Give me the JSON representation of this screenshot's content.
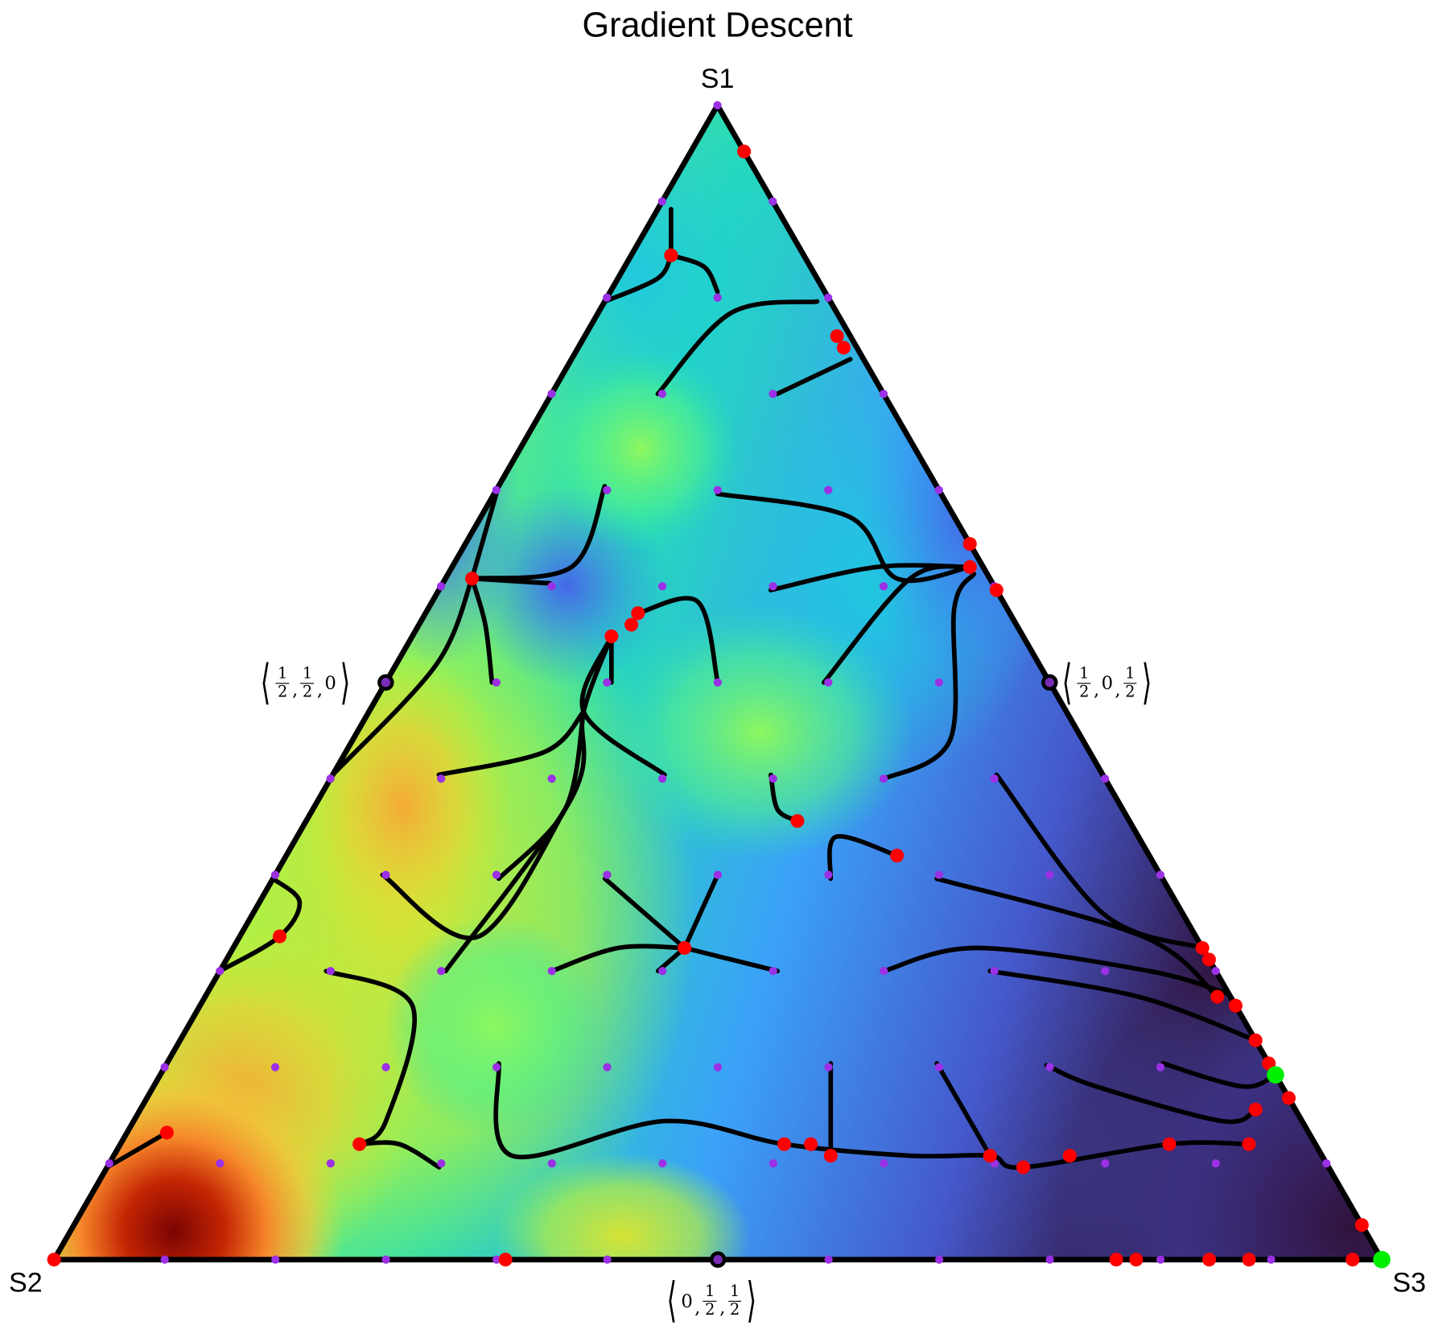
{
  "chart_data": {
    "type": "ternary",
    "title": "Gradient Descent",
    "vertex_labels": {
      "top": "S1",
      "left": "S2",
      "right": "S3"
    },
    "midpoint_labels": [
      {
        "edge": "S1-S2",
        "parts": [
          "1/2",
          "1/2",
          "0"
        ],
        "coords": [
          0.5,
          0.5,
          0
        ]
      },
      {
        "edge": "S1-S3",
        "parts": [
          "1/2",
          "0",
          "1/2"
        ],
        "coords": [
          0.5,
          0,
          0.5
        ]
      },
      {
        "edge": "S2-S3",
        "parts": [
          "0",
          "1/2",
          "1/2"
        ],
        "coords": [
          0,
          0.5,
          0.5
        ]
      }
    ],
    "coordinate_order": [
      "S1",
      "S2",
      "S3"
    ],
    "start_grid_divisions": 12,
    "background": "heatmap (turbo colormap), high (dark red) near S2, low (dark purple) near S3",
    "colors": {
      "start": "#9b30e6",
      "end": "#ff0000",
      "optimum": "#00ee00",
      "path": "#000000",
      "border": "#000000"
    },
    "endpoints": [
      [
        0.96,
        0,
        0.04
      ],
      [
        0.87,
        0.1,
        0.03
      ],
      [
        0.8,
        0.01,
        0.19
      ],
      [
        0.79,
        0.01,
        0.2
      ],
      [
        0.62,
        0,
        0.38
      ],
      [
        0.6,
        0.01,
        0.39
      ],
      [
        0.58,
        0,
        0.42
      ],
      [
        0.59,
        0.39,
        0.02
      ],
      [
        0.54,
        0.31,
        0.15
      ],
      [
        0.55,
        0.29,
        0.16
      ],
      [
        0.56,
        0.28,
        0.16
      ],
      [
        0.38,
        0.25,
        0.37
      ],
      [
        0.35,
        0.19,
        0.46
      ],
      [
        0.28,
        0.69,
        0.03
      ],
      [
        0.27,
        0.39,
        0.34
      ],
      [
        0.1,
        0.72,
        0.18
      ],
      [
        0.11,
        0.86,
        0.03
      ],
      [
        0,
        1,
        0
      ],
      [
        0,
        0.66,
        0.34
      ],
      [
        0.1,
        0.4,
        0.5
      ],
      [
        0.1,
        0.38,
        0.52
      ],
      [
        0.09,
        0.37,
        0.54
      ],
      [
        0.09,
        0.25,
        0.66
      ],
      [
        0.08,
        0.23,
        0.69
      ],
      [
        0.09,
        0.19,
        0.72
      ],
      [
        0.1,
        0.11,
        0.79
      ],
      [
        0.1,
        0.05,
        0.85
      ],
      [
        0.13,
        0.03,
        0.84
      ],
      [
        0.14,
        0,
        0.86
      ],
      [
        0.27,
        0,
        0.73
      ],
      [
        0.26,
        0,
        0.74
      ],
      [
        0.23,
        0.01,
        0.77
      ],
      [
        0.22,
        0,
        0.78
      ],
      [
        0.19,
        0,
        0.81
      ],
      [
        0.17,
        0,
        0.83
      ],
      [
        0.03,
        0,
        0.97
      ],
      [
        0,
        0.2,
        0.8
      ],
      [
        0,
        0.185,
        0.815
      ],
      [
        0,
        0.13,
        0.87
      ],
      [
        0,
        0.1,
        0.9
      ],
      [
        0,
        0.022,
        0.978
      ]
    ],
    "optima": [
      [
        0.16,
        0,
        0.84
      ],
      [
        0,
        0,
        1
      ]
    ],
    "paths": [
      [
        [
          0.83,
          0.08,
          0.08
        ],
        [
          0.86,
          0.08,
          0.06
        ],
        [
          0.87,
          0.1,
          0.03
        ]
      ],
      [
        [
          0.83,
          0.17,
          0.0
        ],
        [
          0.85,
          0.12,
          0.03
        ],
        [
          0.87,
          0.1,
          0.03
        ]
      ],
      [
        [
          0.91,
          0.08,
          0.01
        ],
        [
          0.89,
          0.09,
          0.02
        ],
        [
          0.87,
          0.1,
          0.03
        ]
      ],
      [
        [
          0.75,
          0.17,
          0.08
        ],
        [
          0.82,
          0.08,
          0.1
        ],
        [
          0.83,
          0.01,
          0.16
        ]
      ],
      [
        [
          0.75,
          0.08,
          0.17
        ],
        [
          0.78,
          0.01,
          0.21
        ]
      ],
      [
        [
          0.67,
          0.17,
          0.17
        ],
        [
          0.65,
          0.08,
          0.28
        ],
        [
          0.59,
          0.07,
          0.34
        ],
        [
          0.6,
          0.01,
          0.39
        ]
      ],
      [
        [
          0.58,
          0.17,
          0.25
        ],
        [
          0.6,
          0.08,
          0.32
        ],
        [
          0.6,
          0.01,
          0.39
        ]
      ],
      [
        [
          0.5,
          0.17,
          0.33
        ],
        [
          0.59,
          0.06,
          0.35
        ],
        [
          0.6,
          0.01,
          0.39
        ]
      ],
      [
        [
          0.42,
          0.17,
          0.42
        ],
        [
          0.45,
          0.1,
          0.45
        ],
        [
          0.57,
          0.04,
          0.4
        ],
        [
          0.6,
          0.01,
          0.4
        ]
      ],
      [
        [
          0.5,
          0.33,
          0.17
        ],
        [
          0.54,
          0.31,
          0.15
        ]
      ],
      [
        [
          0.5,
          0.25,
          0.25
        ],
        [
          0.57,
          0.23,
          0.2
        ],
        [
          0.56,
          0.28,
          0.16
        ]
      ],
      [
        [
          0.42,
          0.33,
          0.25
        ],
        [
          0.47,
          0.36,
          0.16
        ],
        [
          0.54,
          0.31,
          0.15
        ]
      ],
      [
        [
          0.25,
          0.58,
          0.17
        ],
        [
          0.4,
          0.41,
          0.19
        ],
        [
          0.47,
          0.36,
          0.16
        ],
        [
          0.54,
          0.31,
          0.15
        ]
      ],
      [
        [
          0.33,
          0.5,
          0.17
        ],
        [
          0.39,
          0.42,
          0.19
        ],
        [
          0.47,
          0.36,
          0.16
        ]
      ],
      [
        [
          0.33,
          0.58,
          0.08
        ],
        [
          0.28,
          0.54,
          0.18
        ],
        [
          0.4,
          0.41,
          0.19
        ]
      ],
      [
        [
          0.42,
          0.5,
          0.08
        ],
        [
          0.44,
          0.41,
          0.15
        ],
        [
          0.47,
          0.36,
          0.16
        ]
      ],
      [
        [
          0.33,
          0.42,
          0.25
        ],
        [
          0.27,
          0.39,
          0.34
        ]
      ],
      [
        [
          0.33,
          0.33,
          0.33
        ],
        [
          0.27,
          0.39,
          0.34
        ]
      ],
      [
        [
          0.25,
          0.33,
          0.42
        ],
        [
          0.27,
          0.39,
          0.34
        ]
      ],
      [
        [
          0.25,
          0.5,
          0.25
        ],
        [
          0.27,
          0.44,
          0.29
        ],
        [
          0.27,
          0.39,
          0.34
        ]
      ],
      [
        [
          0.25,
          0.42,
          0.33
        ],
        [
          0.27,
          0.39,
          0.34
        ]
      ],
      [
        [
          0.33,
          0.25,
          0.42
        ],
        [
          0.37,
          0.23,
          0.41
        ],
        [
          0.35,
          0.19,
          0.46
        ]
      ],
      [
        [
          0.42,
          0.25,
          0.33
        ],
        [
          0.39,
          0.26,
          0.35
        ],
        [
          0.38,
          0.25,
          0.37
        ]
      ],
      [
        [
          0.17,
          0.58,
          0.25
        ],
        [
          0.09,
          0.61,
          0.3
        ],
        [
          0.12,
          0.48,
          0.4
        ],
        [
          0.1,
          0.4,
          0.5
        ],
        [
          0.09,
          0.31,
          0.6
        ],
        [
          0.09,
          0.25,
          0.66
        ],
        [
          0.08,
          0.23,
          0.69
        ],
        [
          0.1,
          0.11,
          0.79
        ],
        [
          0.1,
          0.05,
          0.85
        ]
      ],
      [
        [
          0.42,
          0.08,
          0.5
        ],
        [
          0.3,
          0.06,
          0.64
        ],
        [
          0.27,
          0,
          0.73
        ]
      ],
      [
        [
          0.33,
          0.17,
          0.5
        ],
        [
          0.28,
          0.04,
          0.68
        ],
        [
          0.23,
          0.01,
          0.77
        ]
      ],
      [
        [
          0.25,
          0.25,
          0.5
        ],
        [
          0.27,
          0.17,
          0.56
        ],
        [
          0.25,
          0.05,
          0.7
        ],
        [
          0.23,
          0,
          0.77
        ]
      ],
      [
        [
          0.25,
          0.17,
          0.58
        ],
        [
          0.23,
          0.07,
          0.71
        ],
        [
          0.19,
          0,
          0.81
        ]
      ],
      [
        [
          0.17,
          0.17,
          0.67
        ],
        [
          0.15,
          0.14,
          0.71
        ],
        [
          0.12,
          0.06,
          0.82
        ],
        [
          0.13,
          0.03,
          0.84
        ]
      ],
      [
        [
          0.17,
          0.08,
          0.75
        ],
        [
          0.15,
          0.03,
          0.82
        ],
        [
          0.16,
          0,
          0.84
        ]
      ],
      [
        [
          0.17,
          0.25,
          0.58
        ],
        [
          0.09,
          0.25,
          0.66
        ]
      ],
      [
        [
          0.17,
          0.33,
          0.5
        ],
        [
          0.09,
          0.37,
          0.54
        ]
      ],
      [
        [
          0.25,
          0.67,
          0.08
        ],
        [
          0.22,
          0.62,
          0.16
        ],
        [
          0.12,
          0.69,
          0.19
        ],
        [
          0.1,
          0.72,
          0.18
        ]
      ],
      [
        [
          0.08,
          0.67,
          0.25
        ],
        [
          0.1,
          0.69,
          0.21
        ],
        [
          0.1,
          0.72,
          0.18
        ]
      ],
      [
        [
          0.33,
          0.67,
          0
        ],
        [
          0.31,
          0.66,
          0.03
        ],
        [
          0.28,
          0.69,
          0.03
        ],
        [
          0.25,
          0.75,
          0
        ]
      ],
      [
        [
          0.08,
          0.92,
          0
        ],
        [
          0.11,
          0.86,
          0.03
        ]
      ],
      [
        [
          0.42,
          0.58,
          0
        ],
        [
          0.51,
          0.45,
          0.03
        ],
        [
          0.59,
          0.39,
          0.02
        ]
      ],
      [
        [
          0.5,
          0.42,
          0.08
        ],
        [
          0.55,
          0.4,
          0.05
        ],
        [
          0.59,
          0.39,
          0.02
        ]
      ],
      [
        [
          0.58,
          0.33,
          0.08
        ],
        [
          0.59,
          0.39,
          0.02
        ]
      ],
      [
        [
          0.67,
          0.25,
          0.08
        ],
        [
          0.6,
          0.31,
          0.09
        ],
        [
          0.59,
          0.39,
          0.02
        ]
      ],
      [
        [
          0.67,
          0.33,
          0
        ],
        [
          0.59,
          0.39,
          0.02
        ]
      ]
    ]
  }
}
